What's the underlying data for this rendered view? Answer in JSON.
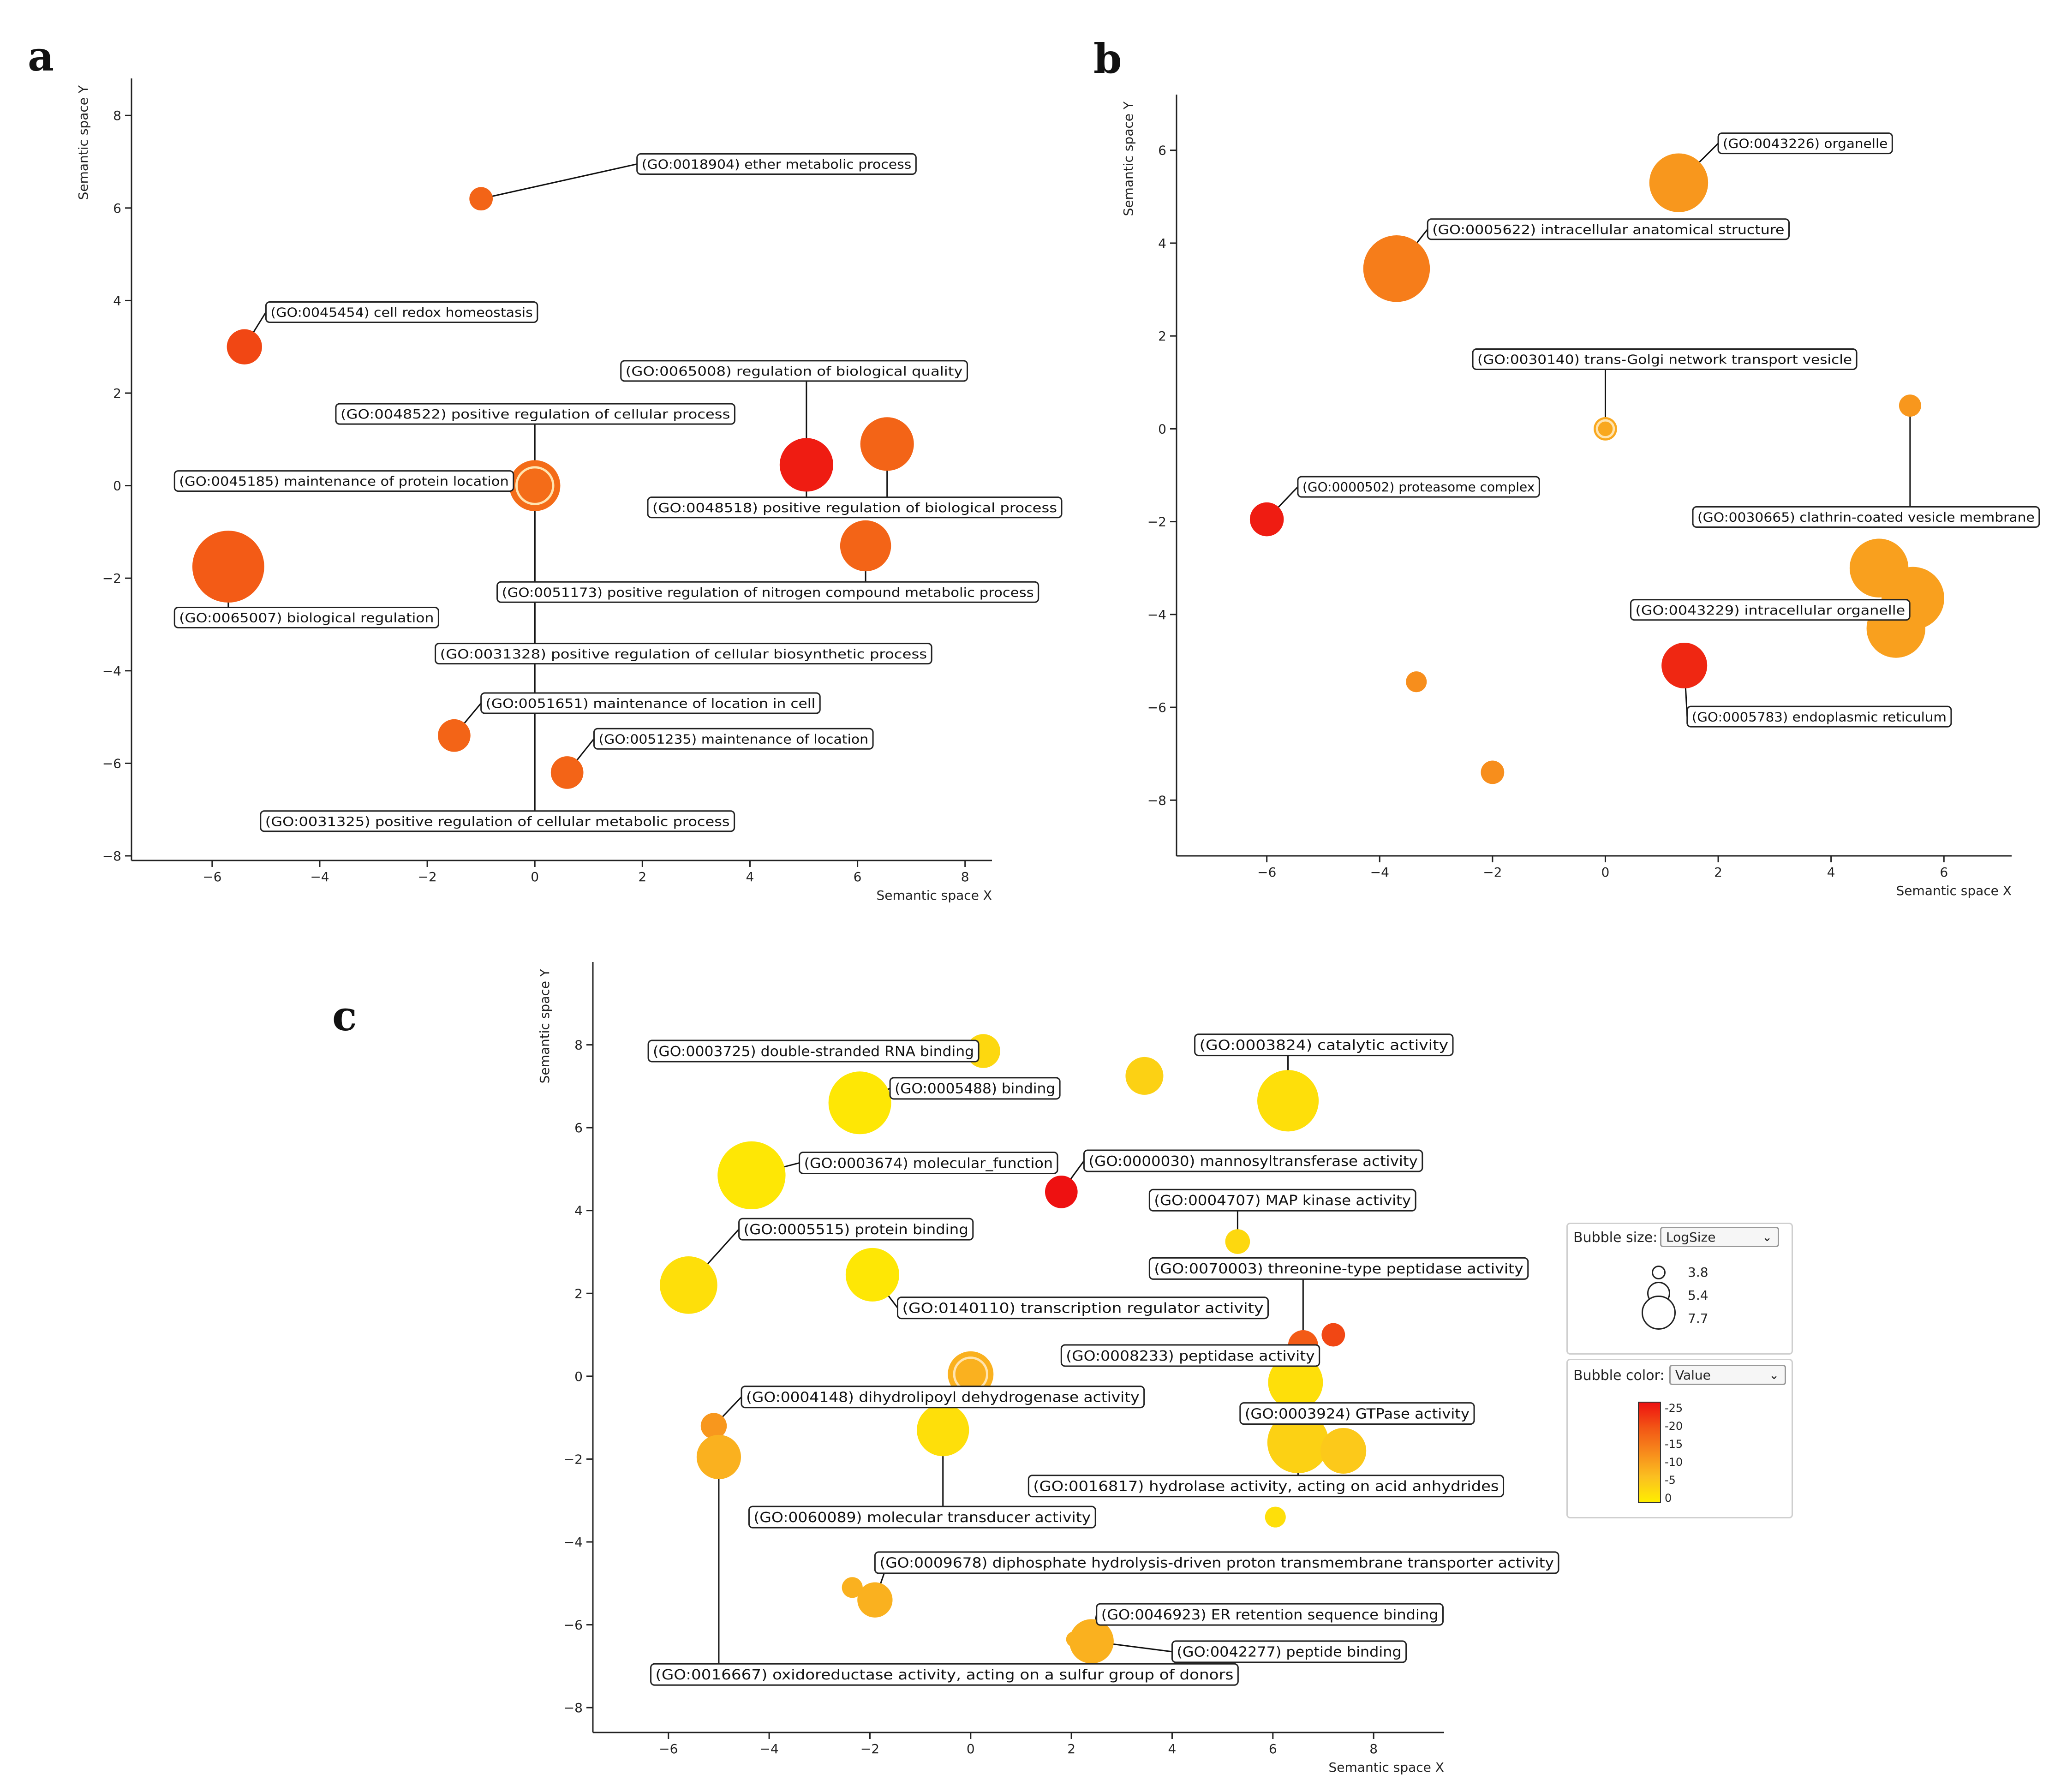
{
  "panels": {
    "a": {
      "letter": "a"
    },
    "b": {
      "letter": "b"
    },
    "c": {
      "letter": "c"
    }
  },
  "colors": {
    "scale": [
      "#ffee00",
      "#fbc020",
      "#f78a1c",
      "#f25515",
      "#ee1111"
    ],
    "label_border": "#222222",
    "axis": "#222222"
  },
  "legend": {
    "size_title": "Bubble size:",
    "size_select": "LogSize",
    "size_values": [
      "3.8",
      "5.4",
      "7.7"
    ],
    "color_title": "Bubble color:",
    "color_select": "Value",
    "color_ticks": [
      "-25",
      "-20",
      "-15",
      "-10",
      "-5",
      "0"
    ]
  },
  "chart_data": [
    {
      "id": "a",
      "type": "scatter",
      "xlabel": "Semantic space X",
      "ylabel": "Semantic space Y",
      "xlim": [
        -7.5,
        8.5
      ],
      "ylim": [
        -8.1,
        8.8
      ],
      "xticks": [
        -6,
        -4,
        -2,
        0,
        2,
        4,
        6,
        8
      ],
      "yticks": [
        -8,
        -6,
        -4,
        -2,
        0,
        2,
        4,
        6,
        8
      ],
      "tick_labels_x": [
        "−6",
        "−4",
        "−2",
        "0",
        "2",
        "4",
        "6",
        "8"
      ],
      "tick_labels_y": [
        "−8",
        "−6",
        "−4",
        "−2",
        "0",
        "2",
        "4",
        "6",
        "8"
      ],
      "points": [
        {
          "x": -1.0,
          "y": 6.2,
          "size": 3.9,
          "value": -17
        },
        {
          "x": -5.4,
          "y": 3.0,
          "size": 4.8,
          "value": -20
        },
        {
          "x": 0.0,
          "y": 0.0,
          "size": 6.0,
          "value": -16,
          "ring": true
        },
        {
          "x": 5.05,
          "y": 0.45,
          "size": 6.2,
          "value": -24
        },
        {
          "x": 6.55,
          "y": 0.9,
          "size": 6.2,
          "value": -17
        },
        {
          "x": 6.15,
          "y": -1.3,
          "size": 6.0,
          "value": -17
        },
        {
          "x": -5.7,
          "y": -1.75,
          "size": 7.6,
          "value": -18
        },
        {
          "x": -1.5,
          "y": -5.4,
          "size": 4.6,
          "value": -17
        },
        {
          "x": 0.6,
          "y": -6.2,
          "size": 4.6,
          "value": -17
        }
      ],
      "labels": [
        {
          "text": "(GO:0018904) ether metabolic process",
          "ax": 1.9,
          "ay": 6.95,
          "targets": [
            0
          ],
          "anchor": "left"
        },
        {
          "text": "(GO:0045454) cell redox homeostasis",
          "ax": -5.0,
          "ay": 3.75,
          "targets": [
            1
          ],
          "anchor": "left"
        },
        {
          "text": "(GO:0065008) regulation of biological quality",
          "ax": 1.6,
          "ay": 2.48,
          "targets": [
            3
          ],
          "anchor": "left"
        },
        {
          "text": "(GO:0048522) positive regulation of cellular process",
          "ax": -3.7,
          "ay": 1.55,
          "targets": [
            2
          ],
          "anchor": "left"
        },
        {
          "text": "(GO:0045185) maintenance of protein location",
          "ax": -6.7,
          "ay": 0.1,
          "targets": [
            2
          ],
          "anchor": "left"
        },
        {
          "text": "(GO:0048518) positive regulation of biological process",
          "ax": 2.1,
          "ay": -0.47,
          "targets": [
            3,
            4
          ],
          "anchor": "left"
        },
        {
          "text": "(GO:0051173) positive regulation of nitrogen compound metabolic process",
          "ax": -0.7,
          "ay": -2.3,
          "targets": [
            5
          ],
          "anchor": "left"
        },
        {
          "text": "(GO:0065007) biological regulation",
          "ax": -6.7,
          "ay": -2.85,
          "targets": [
            6
          ],
          "anchor": "left"
        },
        {
          "text": "(GO:0031328) positive regulation of cellular biosynthetic process",
          "ax": -1.85,
          "ay": -3.63,
          "targets": [
            2
          ],
          "anchor": "left"
        },
        {
          "text": "(GO:0051651) maintenance of location in cell",
          "ax": -1.0,
          "ay": -4.7,
          "targets": [
            7
          ],
          "anchor": "left"
        },
        {
          "text": "(GO:0051235) maintenance of location",
          "ax": 1.1,
          "ay": -5.47,
          "targets": [
            8
          ],
          "anchor": "left"
        },
        {
          "text": "(GO:0031325) positive regulation of cellular metabolic process",
          "ax": -5.1,
          "ay": -7.25,
          "targets": [
            2
          ],
          "anchor": "left"
        }
      ]
    },
    {
      "id": "b",
      "type": "scatter",
      "xlabel": "Semantic space X",
      "ylabel": "Semantic space Y",
      "xlim": [
        -7.6,
        7.2
      ],
      "ylim": [
        -9.2,
        7.2
      ],
      "xticks": [
        -6,
        -4,
        -2,
        0,
        2,
        4,
        6
      ],
      "yticks": [
        -8,
        -6,
        -4,
        -2,
        0,
        2,
        4,
        6
      ],
      "tick_labels_x": [
        "−6",
        "−4",
        "−2",
        "0",
        "2",
        "4",
        "6"
      ],
      "tick_labels_y": [
        "−8",
        "−6",
        "−4",
        "−2",
        "0",
        "2",
        "4",
        "6"
      ],
      "points": [
        {
          "x": 1.3,
          "y": 5.3,
          "size": 6.6,
          "value": -11
        },
        {
          "x": -3.7,
          "y": 3.45,
          "size": 7.2,
          "value": -14
        },
        {
          "x": 0.0,
          "y": 0.0,
          "size": 3.9,
          "value": -9,
          "ring": true
        },
        {
          "x": 5.4,
          "y": 0.5,
          "size": 3.8,
          "value": -11
        },
        {
          "x": -6.0,
          "y": -1.95,
          "size": 4.7,
          "value": -24
        },
        {
          "x": 4.85,
          "y": -3.0,
          "size": 6.6,
          "value": -10
        },
        {
          "x": 5.45,
          "y": -3.65,
          "size": 6.9,
          "value": -10
        },
        {
          "x": 5.15,
          "y": -4.3,
          "size": 6.6,
          "value": -10
        },
        {
          "x": 1.4,
          "y": -5.1,
          "size": 5.6,
          "value": -23
        },
        {
          "x": -3.35,
          "y": -5.45,
          "size": 3.7,
          "value": -12
        },
        {
          "x": -2.0,
          "y": -7.4,
          "size": 3.9,
          "value": -12
        }
      ],
      "labels": [
        {
          "text": "(GO:0043226) organelle",
          "ax": 2.0,
          "ay": 6.15,
          "targets": [
            0
          ],
          "anchor": "left"
        },
        {
          "text": "(GO:0005622) intracellular anatomical structure",
          "ax": -3.15,
          "ay": 4.3,
          "targets": [
            1
          ],
          "anchor": "left"
        },
        {
          "text": "(GO:0030140) trans-Golgi network transport vesicle",
          "ax": -2.35,
          "ay": 1.5,
          "targets": [
            2
          ],
          "anchor": "left"
        },
        {
          "text": "(GO:0000502) proteasome complex",
          "ax": -5.45,
          "ay": -1.25,
          "targets": [
            4
          ],
          "anchor": "left"
        },
        {
          "text": "(GO:0030665) clathrin-coated vesicle membrane",
          "ax": 1.55,
          "ay": -1.9,
          "targets": [
            3
          ],
          "anchor": "left"
        },
        {
          "text": "(GO:0043229) intracellular organelle",
          "ax": 0.45,
          "ay": -3.9,
          "targets": [
            6
          ],
          "anchor": "left"
        },
        {
          "text": "(GO:0005783) endoplasmic reticulum",
          "ax": 1.45,
          "ay": -6.2,
          "targets": [
            8
          ],
          "anchor": "left"
        }
      ]
    },
    {
      "id": "c",
      "type": "scatter",
      "xlabel": "Semantic space X",
      "ylabel": "Semantic space Y",
      "xlim": [
        -7.5,
        9.4
      ],
      "ylim": [
        -8.6,
        10.0
      ],
      "xticks": [
        -6,
        -4,
        -2,
        0,
        2,
        4,
        6,
        8
      ],
      "yticks": [
        -8,
        -6,
        -4,
        -2,
        0,
        2,
        4,
        6,
        8
      ],
      "tick_labels_x": [
        "−6",
        "−4",
        "−2",
        "0",
        "2",
        "4",
        "6",
        "8"
      ],
      "tick_labels_y": [
        "−8",
        "−6",
        "−4",
        "−2",
        "0",
        "2",
        "4",
        "6",
        "8"
      ],
      "points": [
        {
          "x": 0.25,
          "y": 7.85,
          "size": 4.7,
          "value": -3
        },
        {
          "x": 3.45,
          "y": 7.25,
          "size": 5.0,
          "value": -4
        },
        {
          "x": 6.3,
          "y": 6.65,
          "size": 6.8,
          "value": -2
        },
        {
          "x": -2.2,
          "y": 6.6,
          "size": 6.9,
          "value": -1
        },
        {
          "x": -4.35,
          "y": 4.85,
          "size": 7.3,
          "value": -1
        },
        {
          "x": 1.8,
          "y": 4.45,
          "size": 4.6,
          "value": -25
        },
        {
          "x": 5.3,
          "y": 3.25,
          "size": 4.0,
          "value": -3
        },
        {
          "x": -5.6,
          "y": 2.2,
          "size": 6.5,
          "value": -2
        },
        {
          "x": -1.95,
          "y": 2.45,
          "size": 6.2,
          "value": -1
        },
        {
          "x": 6.6,
          "y": 0.75,
          "size": 4.4,
          "value": -18
        },
        {
          "x": 7.2,
          "y": 1.0,
          "size": 3.9,
          "value": -20
        },
        {
          "x": 0.0,
          "y": 0.05,
          "size": 5.6,
          "value": -8,
          "ring": true
        },
        {
          "x": 6.45,
          "y": -0.15,
          "size": 6.3,
          "value": -2
        },
        {
          "x": -5.1,
          "y": -1.2,
          "size": 4.1,
          "value": -11
        },
        {
          "x": -5.0,
          "y": -1.95,
          "size": 5.5,
          "value": -8
        },
        {
          "x": -0.55,
          "y": -1.3,
          "size": 6.1,
          "value": -2
        },
        {
          "x": 6.5,
          "y": -1.6,
          "size": 6.8,
          "value": -4
        },
        {
          "x": 7.4,
          "y": -1.8,
          "size": 5.6,
          "value": -5
        },
        {
          "x": 6.05,
          "y": -3.4,
          "size": 3.7,
          "value": -2
        },
        {
          "x": -2.35,
          "y": -5.1,
          "size": 3.7,
          "value": -8
        },
        {
          "x": -1.9,
          "y": -5.4,
          "size": 4.8,
          "value": -8
        },
        {
          "x": 2.4,
          "y": -6.4,
          "size": 5.5,
          "value": -8
        },
        {
          "x": 2.05,
          "y": -6.35,
          "size": 3.3,
          "value": -8
        }
      ],
      "labels": [
        {
          "text": "(GO:0003725) double-stranded RNA binding",
          "ax": -6.4,
          "ay": 7.85,
          "targets": [
            0
          ],
          "anchor": "left"
        },
        {
          "text": "(GO:0003824) catalytic activity",
          "ax": 4.45,
          "ay": 8.0,
          "targets": [
            2
          ],
          "anchor": "left"
        },
        {
          "text": "(GO:0005488) binding",
          "ax": -1.6,
          "ay": 6.95,
          "targets": [
            3
          ],
          "anchor": "left"
        },
        {
          "text": "(GO:0003674) molecular_function",
          "ax": -3.4,
          "ay": 5.15,
          "targets": [
            4
          ],
          "anchor": "left"
        },
        {
          "text": "(GO:0000030) mannosyltransferase activity",
          "ax": 2.25,
          "ay": 5.2,
          "targets": [
            5
          ],
          "anchor": "left"
        },
        {
          "text": "(GO:0004707) MAP kinase activity",
          "ax": 3.55,
          "ay": 4.25,
          "targets": [
            6
          ],
          "anchor": "left"
        },
        {
          "text": "(GO:0005515) protein binding",
          "ax": -4.6,
          "ay": 3.55,
          "targets": [
            7
          ],
          "anchor": "left"
        },
        {
          "text": "(GO:0070003) threonine-type peptidase activity",
          "ax": 3.55,
          "ay": 2.6,
          "targets": [
            9
          ],
          "anchor": "left"
        },
        {
          "text": "(GO:0140110) transcription regulator activity",
          "ax": -1.45,
          "ay": 1.65,
          "targets": [
            8
          ],
          "anchor": "left"
        },
        {
          "text": "(GO:0008233) peptidase activity",
          "ax": 1.8,
          "ay": 0.5,
          "targets": [
            12
          ],
          "anchor": "left"
        },
        {
          "text": "(GO:0004148) dihydrolipoyl dehydrogenase activity",
          "ax": -4.55,
          "ay": -0.5,
          "targets": [
            13
          ],
          "anchor": "left"
        },
        {
          "text": "(GO:0003924) GTPase activity",
          "ax": 5.35,
          "ay": -0.9,
          "targets": [
            16
          ],
          "anchor": "left"
        },
        {
          "text": "(GO:0016817) hydrolase activity, acting on acid anhydrides",
          "ax": 1.15,
          "ay": -2.65,
          "targets": [
            16
          ],
          "anchor": "left"
        },
        {
          "text": "(GO:0060089) molecular transducer activity",
          "ax": -4.4,
          "ay": -3.4,
          "targets": [
            15
          ],
          "anchor": "left"
        },
        {
          "text": "(GO:0009678) diphosphate hydrolysis-driven proton transmembrane transporter activity",
          "ax": -1.9,
          "ay": -4.5,
          "targets": [
            20
          ],
          "anchor": "left"
        },
        {
          "text": "(GO:0046923) ER retention sequence binding",
          "ax": 2.5,
          "ay": -5.75,
          "targets": [
            21
          ],
          "anchor": "left"
        },
        {
          "text": "(GO:0042277) peptide binding",
          "ax": 4.0,
          "ay": -6.65,
          "targets": [
            21
          ],
          "anchor": "left"
        },
        {
          "text": "(GO:0016667) oxidoreductase activity, acting on a sulfur group of donors",
          "ax": -6.35,
          "ay": -7.2,
          "targets": [
            14
          ],
          "anchor": "left"
        }
      ]
    }
  ]
}
